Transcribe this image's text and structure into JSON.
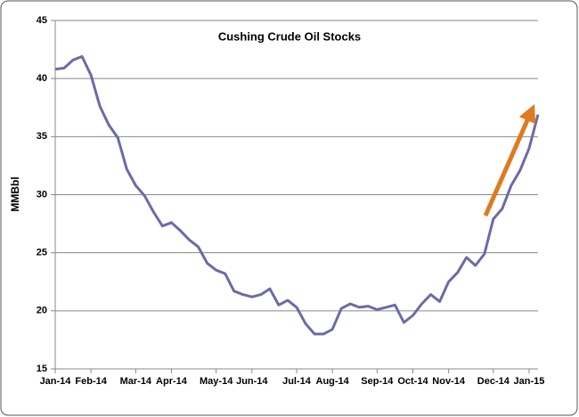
{
  "chart_data": {
    "type": "line",
    "title": "Cushing Crude Oil Stocks",
    "y_label": "MMBbl",
    "categories": [
      "Jan-14",
      null,
      null,
      null,
      "Feb-14",
      null,
      null,
      null,
      null,
      "Mar-14",
      null,
      null,
      null,
      "Apr-14",
      null,
      null,
      null,
      null,
      "May-14",
      null,
      null,
      null,
      "Jun-14",
      null,
      null,
      null,
      null,
      "Jul-14",
      null,
      null,
      null,
      "Aug-14",
      null,
      null,
      null,
      null,
      "Sep-14",
      null,
      null,
      null,
      "Oct-14",
      null,
      null,
      null,
      "Nov-14",
      null,
      null,
      null,
      null,
      "Dec-14",
      null,
      null,
      null,
      "Jan-15",
      null
    ],
    "series": [
      {
        "name": "Cushing",
        "color": "#6b6ba8",
        "values": [
          40.8,
          40.9,
          41.6,
          41.9,
          40.3,
          37.6,
          36.0,
          34.9,
          32.2,
          30.8,
          29.9,
          28.5,
          27.3,
          27.6,
          26.9,
          26.1,
          25.5,
          24.1,
          23.5,
          23.2,
          21.7,
          21.4,
          21.2,
          21.4,
          21.9,
          20.5,
          20.9,
          20.3,
          18.9,
          18.0,
          18.0,
          18.4,
          20.2,
          20.6,
          20.3,
          20.4,
          20.1,
          20.3,
          20.5,
          19.0,
          19.6,
          20.6,
          21.4,
          20.8,
          22.5,
          23.3,
          24.6,
          23.9,
          24.9,
          27.9,
          28.8,
          30.8,
          32.1,
          34.0,
          36.9
        ]
      }
    ],
    "ylim": [
      15,
      45
    ],
    "yticks": [
      15,
      20,
      25,
      30,
      35,
      40,
      45
    ],
    "grid": true
  }
}
